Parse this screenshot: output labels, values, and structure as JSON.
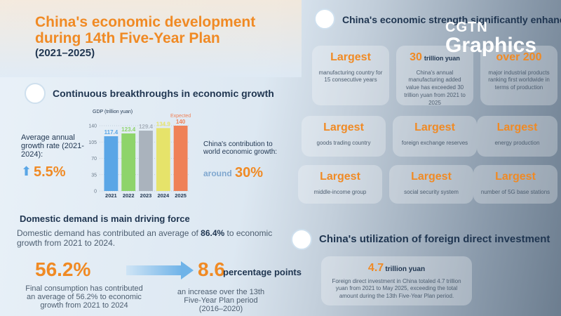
{
  "header": {
    "title": "China's economic development during 14th Five-Year Plan",
    "period": "(2021–2025)"
  },
  "brand": {
    "line1": "CGTN",
    "line2": "Graphics"
  },
  "growth": {
    "heading": "Continuous breakthroughs in economic growth",
    "rate_label": "Average annual growth rate (2021-2024):",
    "rate_value": "5.5%",
    "contribution_label": "China's contribution to world economic growth:",
    "contribution_prefix": "around",
    "contribution_value": "30%"
  },
  "chart_data": {
    "type": "bar",
    "y_label": "GDP (trillion yuan)",
    "categories": [
      "2021",
      "2022",
      "2023",
      "2024",
      "2025"
    ],
    "values": [
      117.4,
      123.4,
      129.4,
      134.9,
      140
    ],
    "colors": [
      "#5aa6e6",
      "#8ed46b",
      "#aab3bd",
      "#e6e36a",
      "#ef8157"
    ],
    "annotation": "Expected",
    "ylim": [
      0,
      140
    ],
    "yticks": [
      0,
      35,
      70,
      105,
      140
    ],
    "grid": true
  },
  "demand": {
    "heading": "Domestic demand is main driving force",
    "text_before": "Domestic demand has contributed an average of ",
    "text_value": "86.4%",
    "text_after": " to economic growth from 2021 to 2024.",
    "consumption_value": "56.2%",
    "consumption_text": "Final consumption has contributed an average of 56.2% to economic growth from 2021 to 2024",
    "increase_value": "8.6",
    "increase_unit": "percentage points",
    "increase_text": "an increase over the 13th Five-Year Plan period (2016–2020)"
  },
  "strength": {
    "heading": "China's economic strength significantly enhanced",
    "cards": [
      {
        "big": "Largest",
        "text": "manufacturing country for 15 consecutive years"
      },
      {
        "big": "30",
        "unit": "trillion yuan",
        "text": "China's annual manufacturing added value has exceeded 30 trillion yuan from 2021 to 2025"
      },
      {
        "big": "over 200",
        "text": "major industrial products ranking first worldwide in terms of production"
      },
      {
        "big": "Largest",
        "text": "goods trading country"
      },
      {
        "big": "Largest",
        "text": "foreign exchange reserves"
      },
      {
        "big": "Largest",
        "text": "energy production"
      },
      {
        "big": "Largest",
        "text": "middle-income group"
      },
      {
        "big": "Largest",
        "text": "social security system"
      },
      {
        "big": "Largest",
        "text": "number of 5G base stations"
      }
    ]
  },
  "fdi": {
    "heading": "China's utilization of foreign direct investment",
    "value": "4.7",
    "unit": "trillion yuan",
    "text": "Foreign direct investment in China totaled 4.7 trillion yuan from 2021 to May 2025, exceeding the total amount during the 13th Five-Year Plan period."
  }
}
